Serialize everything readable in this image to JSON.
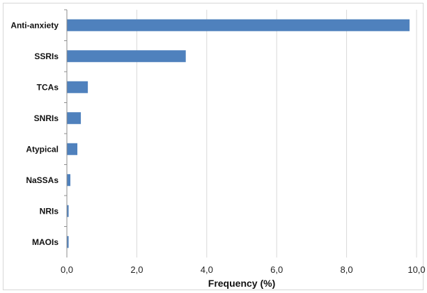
{
  "chart_data": {
    "type": "bar",
    "orientation": "horizontal",
    "categories": [
      "Anti-anxiety",
      "SSRIs",
      "TCAs",
      "SNRIs",
      "Atypical",
      "NaSSAs",
      "NRIs",
      "MAOIs"
    ],
    "values": [
      9.8,
      3.4,
      0.6,
      0.4,
      0.3,
      0.1,
      0.05,
      0.05
    ],
    "title": "",
    "xlabel": "Frequency (%)",
    "ylabel": "",
    "xlim": [
      0,
      10
    ],
    "xticks": [
      0,
      2,
      4,
      6,
      8,
      10
    ],
    "xtick_labels": [
      "0,0",
      "2,0",
      "4,0",
      "6,0",
      "8,0",
      "10,0"
    ],
    "grid": "vertical",
    "legend": "none",
    "bar_color": "#4f81bd",
    "grid_color": "#d9d9d9",
    "axis_color": "#8c8c8c"
  }
}
